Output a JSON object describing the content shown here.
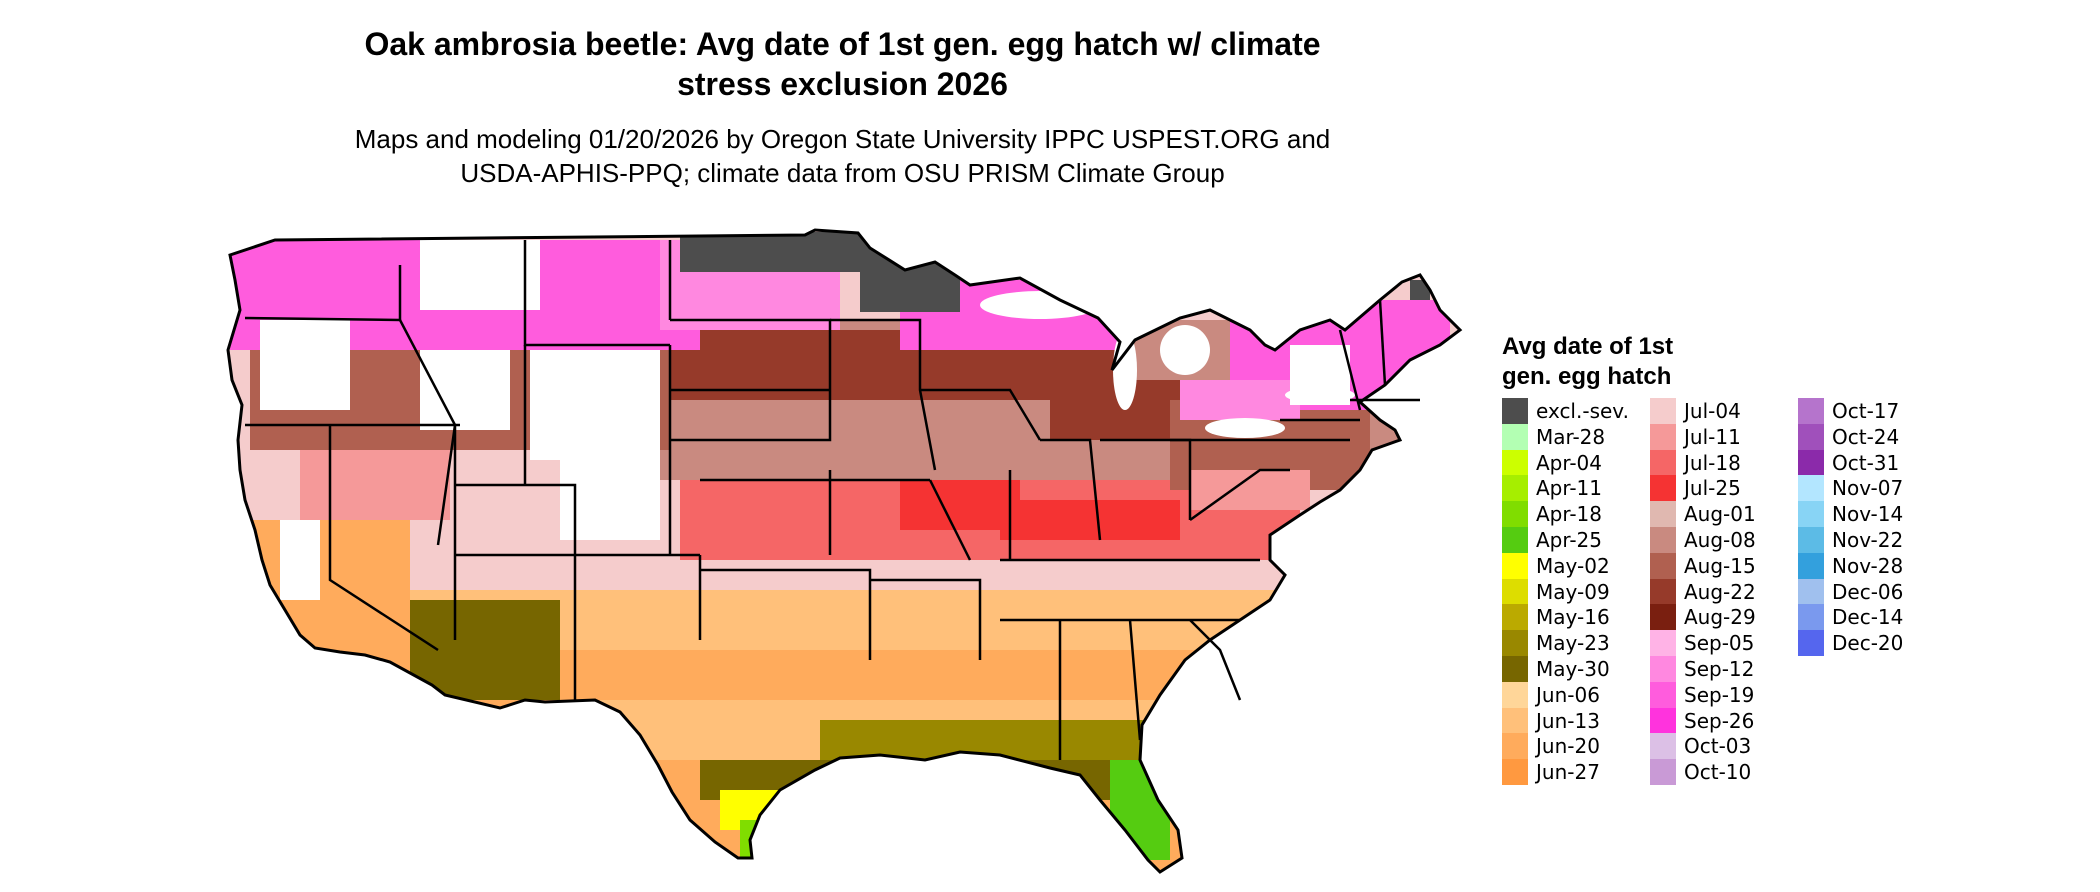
{
  "title_line1": "Oak ambrosia beetle: Avg date of 1st gen. egg hatch w/ climate",
  "title_line2": "stress exclusion 2026",
  "subtitle_line1": "Maps and modeling 01/20/2026 by Oregon State University IPPC USPEST.ORG and",
  "subtitle_line2": "USDA-APHIS-PPQ; climate data from OSU PRISM Climate Group",
  "legend": {
    "title_line1": "Avg date of 1st",
    "title_line2": "gen. egg hatch",
    "columns": [
      [
        {
          "label": "excl.-sev.",
          "color": "#4d4d4d"
        },
        {
          "label": "Mar-28",
          "color": "#b3ffb3"
        },
        {
          "label": "Apr-04",
          "color": "#ccff00"
        },
        {
          "label": "Apr-11",
          "color": "#a6ee00"
        },
        {
          "label": "Apr-18",
          "color": "#80dd00"
        },
        {
          "label": "Apr-25",
          "color": "#55cc11"
        },
        {
          "label": "May-02",
          "color": "#ffff00"
        },
        {
          "label": "May-09",
          "color": "#dddd00"
        },
        {
          "label": "May-16",
          "color": "#bbaa00"
        },
        {
          "label": "May-23",
          "color": "#998800"
        },
        {
          "label": "May-30",
          "color": "#776600"
        },
        {
          "label": "Jun-06",
          "color": "#ffd699"
        },
        {
          "label": "Jun-13",
          "color": "#ffc07a"
        },
        {
          "label": "Jun-20",
          "color": "#ffab5c"
        },
        {
          "label": "Jun-27",
          "color": "#ff9940"
        }
      ],
      [
        {
          "label": "Jul-04",
          "color": "#f5cccc"
        },
        {
          "label": "Jul-11",
          "color": "#f59999"
        },
        {
          "label": "Jul-18",
          "color": "#f56666"
        },
        {
          "label": "Jul-25",
          "color": "#f53333"
        },
        {
          "label": "Aug-01",
          "color": "#e0b8b0"
        },
        {
          "label": "Aug-08",
          "color": "#c98a80"
        },
        {
          "label": "Aug-15",
          "color": "#b06050"
        },
        {
          "label": "Aug-22",
          "color": "#963a2a"
        },
        {
          "label": "Aug-29",
          "color": "#7a1f10"
        },
        {
          "label": "Sep-05",
          "color": "#ffb3e6"
        },
        {
          "label": "Sep-12",
          "color": "#ff88e0"
        },
        {
          "label": "Sep-19",
          "color": "#ff5cdd"
        },
        {
          "label": "Sep-26",
          "color": "#ff33dd"
        },
        {
          "label": "Oct-03",
          "color": "#dcc0e6"
        },
        {
          "label": "Oct-10",
          "color": "#c99ad6"
        }
      ],
      [
        {
          "label": "Oct-17",
          "color": "#b574cc"
        },
        {
          "label": "Oct-24",
          "color": "#a050bb"
        },
        {
          "label": "Oct-31",
          "color": "#8b2aaa"
        },
        {
          "label": "Nov-07",
          "color": "#b3e6ff"
        },
        {
          "label": "Nov-14",
          "color": "#88d4f5"
        },
        {
          "label": "Nov-22",
          "color": "#5cbbe6"
        },
        {
          "label": "Nov-28",
          "color": "#33a0dd"
        },
        {
          "label": "Dec-06",
          "color": "#a0c0ee"
        },
        {
          "label": "Dec-14",
          "color": "#7a99ee"
        },
        {
          "label": "Dec-20",
          "color": "#5566ee"
        }
      ]
    ]
  }
}
